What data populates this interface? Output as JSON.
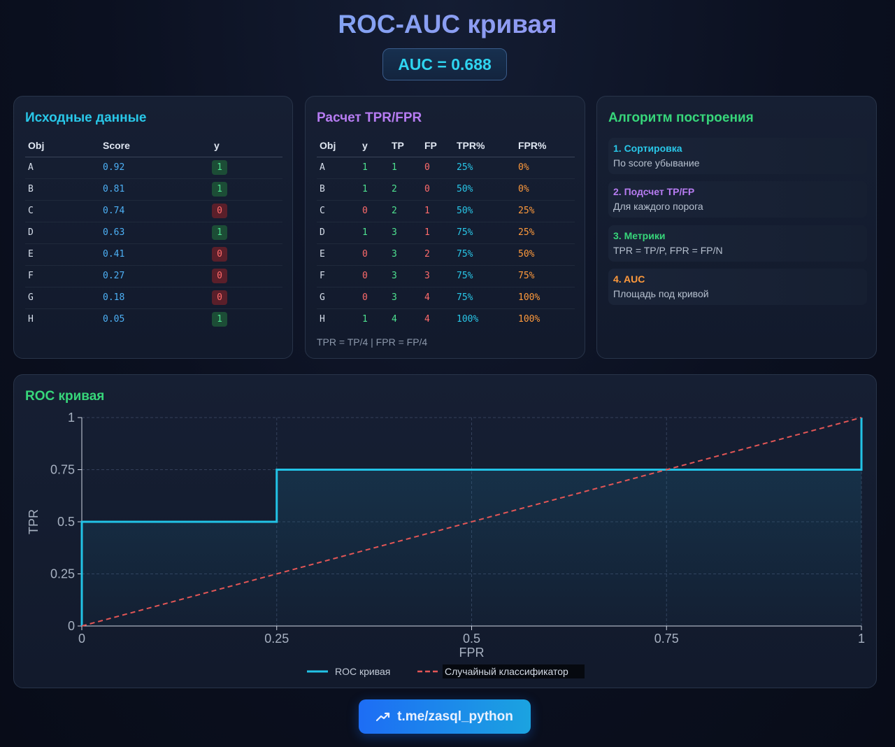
{
  "header": {
    "title": "ROC-AUC кривая",
    "auc_badge": "AUC = 0.688"
  },
  "data_card": {
    "title": "Исходные данные",
    "title_color": "#29c7e8",
    "columns": [
      "Obj",
      "Score",
      "y"
    ],
    "rows": [
      {
        "obj": "A",
        "score": "0.92",
        "y": "1"
      },
      {
        "obj": "B",
        "score": "0.81",
        "y": "1"
      },
      {
        "obj": "C",
        "score": "0.74",
        "y": "0"
      },
      {
        "obj": "D",
        "score": "0.63",
        "y": "1"
      },
      {
        "obj": "E",
        "score": "0.41",
        "y": "0"
      },
      {
        "obj": "F",
        "score": "0.27",
        "y": "0"
      },
      {
        "obj": "G",
        "score": "0.18",
        "y": "0"
      },
      {
        "obj": "H",
        "score": "0.05",
        "y": "1"
      }
    ]
  },
  "calc_card": {
    "title": "Расчет TPR/FPR",
    "title_color": "#b77cf2",
    "columns": [
      "Obj",
      "y",
      "TP",
      "FP",
      "TPR%",
      "FPR%"
    ],
    "rows": [
      {
        "obj": "A",
        "y": "1",
        "tp": "1",
        "fp": "0",
        "tpr": "25%",
        "fpr": "0%"
      },
      {
        "obj": "B",
        "y": "1",
        "tp": "2",
        "fp": "0",
        "tpr": "50%",
        "fpr": "0%"
      },
      {
        "obj": "C",
        "y": "0",
        "tp": "2",
        "fp": "1",
        "tpr": "50%",
        "fpr": "25%"
      },
      {
        "obj": "D",
        "y": "1",
        "tp": "3",
        "fp": "1",
        "tpr": "75%",
        "fpr": "25%"
      },
      {
        "obj": "E",
        "y": "0",
        "tp": "3",
        "fp": "2",
        "tpr": "75%",
        "fpr": "50%"
      },
      {
        "obj": "F",
        "y": "0",
        "tp": "3",
        "fp": "3",
        "tpr": "75%",
        "fpr": "75%"
      },
      {
        "obj": "G",
        "y": "0",
        "tp": "3",
        "fp": "4",
        "tpr": "75%",
        "fpr": "100%"
      },
      {
        "obj": "H",
        "y": "1",
        "tp": "4",
        "fp": "4",
        "tpr": "100%",
        "fpr": "100%"
      }
    ],
    "note": "TPR = TP/4 | FPR = FP/4"
  },
  "algo_card": {
    "title": "Алгоритм построения",
    "title_color": "#37d67a",
    "steps": [
      {
        "heading": "1. Сортировка",
        "desc": "По score убывание",
        "color": "#29c7e8"
      },
      {
        "heading": "2. Подсчет TP/FP",
        "desc": "Для каждого порога",
        "color": "#b77cf2"
      },
      {
        "heading": "3. Метрики",
        "desc": "TPR = TP/P, FPR = FP/N",
        "color": "#37d67a"
      },
      {
        "heading": "4. AUC",
        "desc": "Площадь под кривой",
        "color": "#ff9a3c"
      }
    ]
  },
  "roc_card": {
    "title": "ROC кривая",
    "title_color": "#37d67a"
  },
  "chart_data": {
    "type": "line",
    "title": "ROC кривая",
    "xlabel": "FPR",
    "ylabel": "TPR",
    "xlim": [
      0,
      1
    ],
    "ylim": [
      0,
      1
    ],
    "xticks": [
      0,
      0.25,
      0.5,
      0.75,
      1
    ],
    "yticks": [
      0,
      0.25,
      0.5,
      0.75,
      1
    ],
    "xtick_labels": [
      "0",
      "0.25",
      "0.5",
      "0.75",
      "1"
    ],
    "ytick_labels": [
      "0",
      "0.25",
      "0.5",
      "0.75",
      "1"
    ],
    "grid": true,
    "legend_position": "bottom-center",
    "series": [
      {
        "name": "ROC кривая",
        "color": "#22c3e6",
        "style": "solid-step",
        "x": [
          0,
          0,
          0.25,
          0.25,
          1,
          1
        ],
        "y": [
          0,
          0.5,
          0.5,
          0.75,
          0.75,
          1
        ]
      },
      {
        "name": "Случайный классификатор",
        "color": "#e35656",
        "style": "dashed",
        "x": [
          0,
          1
        ],
        "y": [
          0,
          1
        ]
      }
    ]
  },
  "footer": {
    "link_label": "t.me/zasql_python",
    "icon": "trending-up-icon"
  }
}
